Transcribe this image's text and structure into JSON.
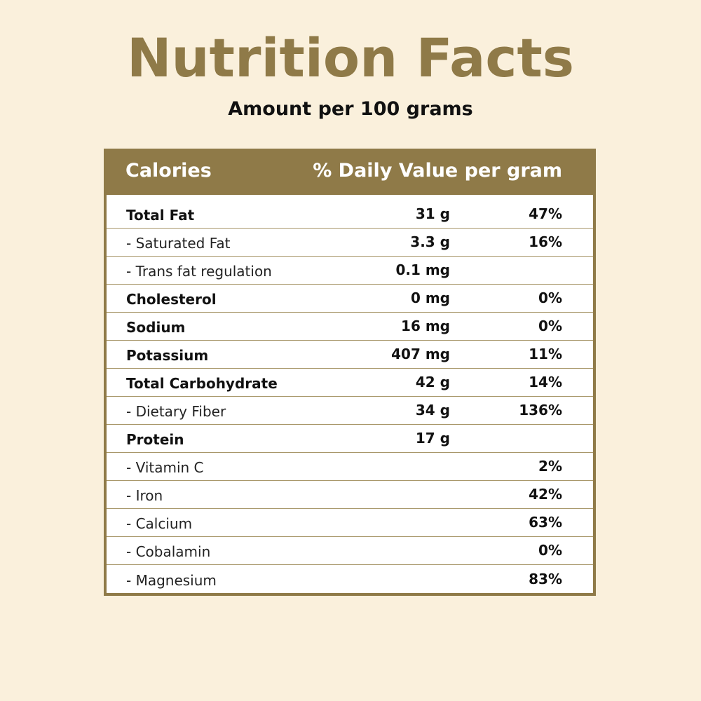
{
  "title": "Nutrition Facts",
  "subtitle": "Amount per 100 grams",
  "table": {
    "header": {
      "calories": "Calories",
      "daily_value": "% Daily Value per gram"
    },
    "rows": [
      {
        "name": "Total Fat",
        "amount": "31 g",
        "percent": "47%",
        "bold": true
      },
      {
        "name": "- Saturated Fat",
        "amount": "3.3 g",
        "percent": "16%",
        "bold": false
      },
      {
        "name": "- Trans fat regulation",
        "amount": "0.1 mg",
        "percent": "",
        "bold": false
      },
      {
        "name": "Cholesterol",
        "amount": "0 mg",
        "percent": "0%",
        "bold": true
      },
      {
        "name": "Sodium",
        "amount": "16 mg",
        "percent": "0%",
        "bold": true
      },
      {
        "name": "Potassium",
        "amount": "407 mg",
        "percent": "11%",
        "bold": true
      },
      {
        "name": "Total Carbohydrate",
        "amount": "42 g",
        "percent": "14%",
        "bold": true
      },
      {
        "name": "- Dietary Fiber",
        "amount": "34 g",
        "percent": "136%",
        "bold": false
      },
      {
        "name": "Protein",
        "amount": "17 g",
        "percent": "",
        "bold": true
      },
      {
        "name": "- Vitamin C",
        "amount": "",
        "percent": "2%",
        "bold": false
      },
      {
        "name": "- Iron",
        "amount": "",
        "percent": "42%",
        "bold": false
      },
      {
        "name": "- Calcium",
        "amount": "",
        "percent": "63%",
        "bold": false
      },
      {
        "name": "- Cobalamin",
        "amount": "",
        "percent": "0%",
        "bold": false
      },
      {
        "name": "- Magnesium",
        "amount": "",
        "percent": "83%",
        "bold": false
      }
    ]
  },
  "colors": {
    "accent": "#8f7a48",
    "background": "#faf0dc"
  }
}
